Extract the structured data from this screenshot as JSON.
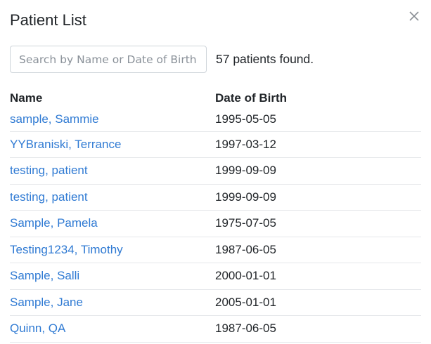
{
  "modal": {
    "title": "Patient List",
    "close_icon": "close-icon"
  },
  "search": {
    "placeholder": "Search by Name or Date of Birth",
    "value": ""
  },
  "result_count": "57 patients found.",
  "table": {
    "headers": {
      "name": "Name",
      "dob": "Date of Birth"
    },
    "rows": [
      {
        "name": "sample, Sammie",
        "dob": "1995-05-05"
      },
      {
        "name": "YYBraniski, Terrance",
        "dob": "1997-03-12"
      },
      {
        "name": "testing, patient",
        "dob": "1999-09-09"
      },
      {
        "name": "testing, patient",
        "dob": "1999-09-09"
      },
      {
        "name": "Sample, Pamela",
        "dob": "1975-07-05"
      },
      {
        "name": "Testing1234, Timothy",
        "dob": "1987-06-05"
      },
      {
        "name": "Sample, Salli",
        "dob": "2000-01-01"
      },
      {
        "name": "Sample, Jane",
        "dob": "2005-01-01"
      },
      {
        "name": "Quinn, QA",
        "dob": "1987-06-05"
      }
    ]
  },
  "colors": {
    "link": "#2f7ad3",
    "text": "#212529",
    "border": "#ced4da"
  }
}
